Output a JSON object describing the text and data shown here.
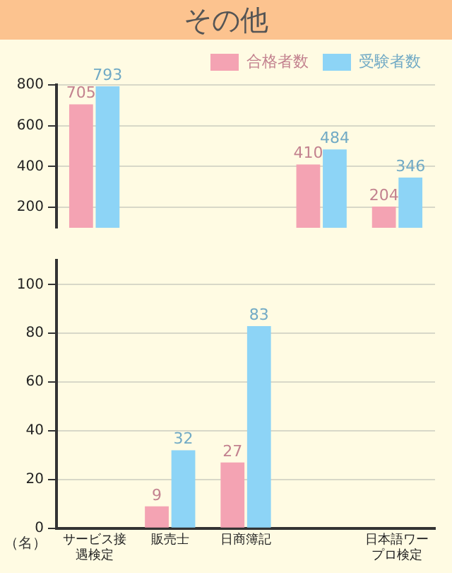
{
  "chart_data": [
    {
      "type": "bar",
      "title": "その他",
      "categories": [
        null,
        null,
        null,
        null,
        null
      ],
      "series": [
        {
          "name": "合格者数",
          "color": "#f4a3b3",
          "values": [
            705,
            null,
            null,
            410,
            204
          ],
          "value_labels": [
            "705",
            null,
            null,
            "410",
            "204"
          ]
        },
        {
          "name": "受験者数",
          "color": "#8dd4f6",
          "values": [
            793,
            null,
            null,
            484,
            346
          ],
          "value_labels": [
            "793",
            null,
            null,
            "484",
            "346"
          ]
        }
      ],
      "ylim": [
        100,
        800
      ],
      "yticks": [
        200,
        400,
        600,
        800
      ],
      "grid": "y",
      "legend": "top right",
      "tick_labels": "y"
    },
    {
      "type": "bar",
      "ylabel": "（名）",
      "categories": [
        "サービス接遇検定",
        "販売士",
        "日商簿記",
        null,
        "日本語ワープロ検定"
      ],
      "series": [
        {
          "color": "#f4a3b3",
          "values": [
            null,
            9,
            27,
            null,
            null
          ],
          "value_labels": [
            null,
            "9",
            "27",
            null,
            null
          ]
        },
        {
          "color": "#8dd4f6",
          "values": [
            null,
            32,
            83,
            null,
            null
          ],
          "value_labels": [
            null,
            "32",
            "83",
            null,
            null
          ]
        }
      ],
      "ylim": [
        0,
        110
      ],
      "yticks": [
        0,
        20,
        40,
        60,
        80,
        100
      ],
      "grid": "y"
    }
  ]
}
